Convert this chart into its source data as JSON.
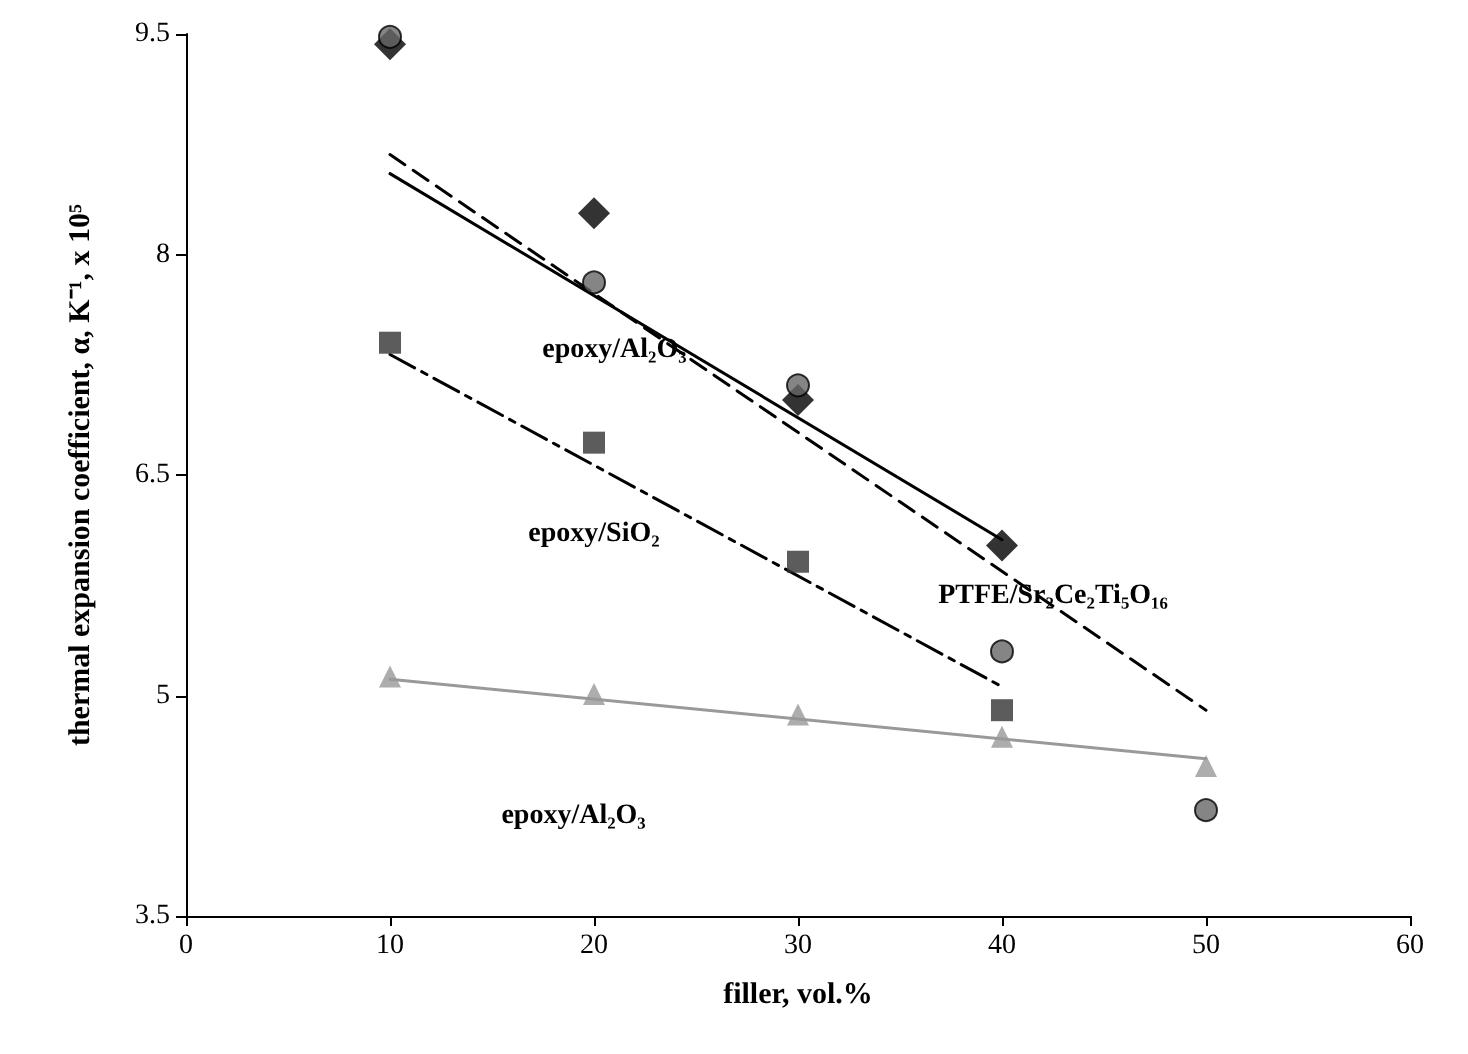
{
  "chart_data": {
    "type": "scatter",
    "xlabel": "filler, vol.%",
    "ylabel": "thermal expansion coefficient, α, K⁻¹, x 10⁵",
    "xlim": [
      0,
      60
    ],
    "xticks": [
      0,
      10,
      20,
      30,
      40,
      50,
      60
    ],
    "ylim": [
      3.5,
      9.5
    ],
    "yticks": [
      3.5,
      5,
      6.5,
      8,
      9.5
    ],
    "grid": false,
    "series": [
      {
        "marker": "diamond",
        "color": "#000000",
        "x": [
          10,
          20,
          30,
          40
        ],
        "values": [
          9.43,
          8.28,
          7.01,
          6.02
        ]
      },
      {
        "marker": "circle",
        "color": "#666666",
        "x": [
          10,
          20,
          30,
          40,
          50
        ],
        "values": [
          9.48,
          7.81,
          7.11,
          5.3,
          4.22
        ]
      },
      {
        "marker": "square",
        "color": "#333333",
        "x": [
          10,
          20,
          30,
          40
        ],
        "values": [
          7.4,
          6.72,
          5.91,
          4.9
        ]
      },
      {
        "marker": "triangle",
        "color": "#999999",
        "x": [
          10,
          20,
          30,
          40,
          50
        ],
        "values": [
          5.13,
          5.01,
          4.87,
          4.72,
          4.52
        ]
      },
      {
        "type": "line",
        "marker": "none",
        "line_style": "solid",
        "color": "#000000",
        "x": [
          10,
          40
        ],
        "values": [
          8.55,
          6.06
        ]
      },
      {
        "type": "line",
        "marker": "none",
        "line_style": "dashed",
        "color": "#000000",
        "x": [
          10,
          50
        ],
        "values": [
          8.68,
          4.9
        ]
      },
      {
        "type": "line",
        "marker": "none",
        "line_style": "dashdot",
        "color": "#000000",
        "x": [
          10,
          40
        ],
        "values": [
          7.32,
          5.06
        ]
      },
      {
        "type": "line",
        "marker": "none",
        "line_style": "solid",
        "color": "#999999",
        "x": [
          10,
          50
        ],
        "values": [
          5.11,
          4.57
        ]
      }
    ],
    "annotations": [
      "epoxy/Al₂O₃",
      "epoxy/SiO₂",
      "PTFE/Sr₂Ce₂Ti₅O₁₆",
      "epoxy/Al₂O₃"
    ]
  }
}
